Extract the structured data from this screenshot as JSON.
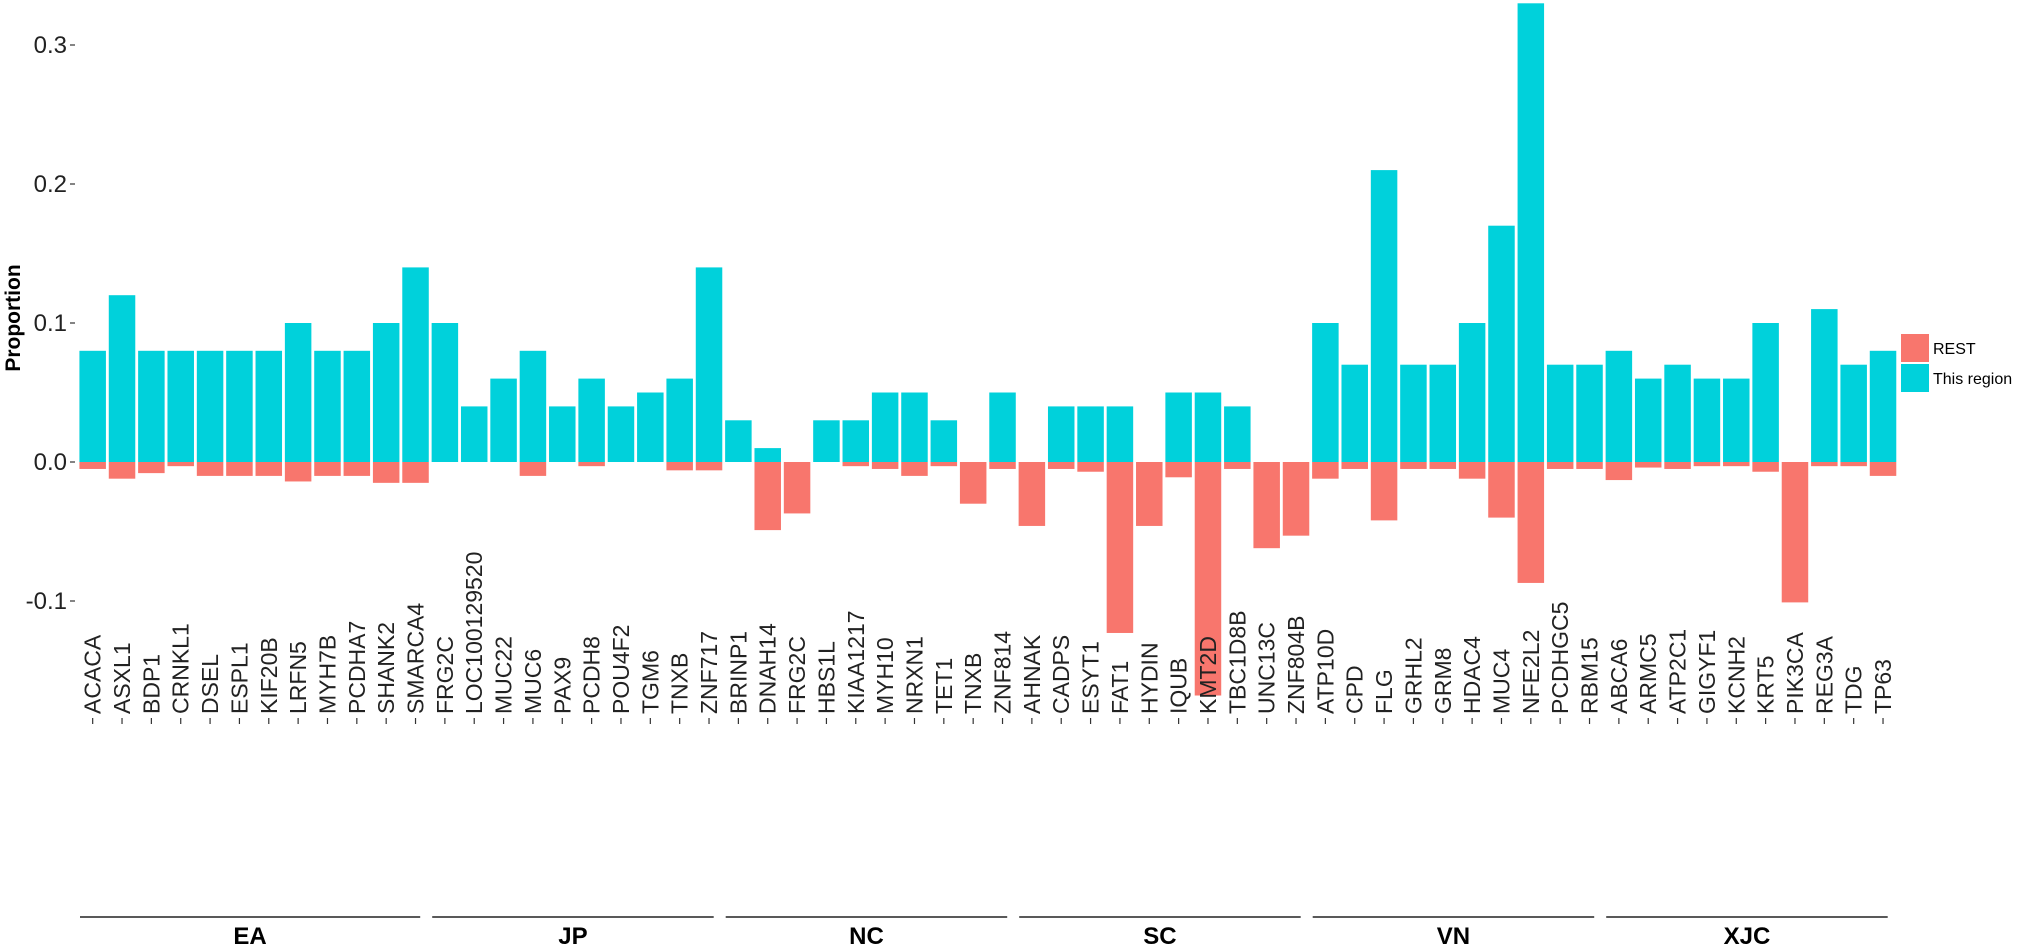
{
  "chart_data": {
    "type": "bar",
    "ylabel": "Proportion",
    "ylim": [
      -0.19,
      0.33
    ],
    "yticks": [
      {
        "value": 0.3,
        "label": "0.3"
      },
      {
        "value": 0.2,
        "label": "0.2"
      },
      {
        "value": 0.1,
        "label": "0.1"
      },
      {
        "value": 0.0,
        "label": "0.0"
      },
      {
        "value": -0.1,
        "label": "-0.1"
      }
    ],
    "legend": {
      "placement": "right",
      "entries": [
        {
          "name": "REST",
          "color": "#F8766D"
        },
        {
          "name": "This region",
          "color": "#00D1DB"
        }
      ]
    },
    "colors": {
      "this_region": "#00D1DB",
      "rest": "#F8766D"
    },
    "groups": [
      {
        "name": "EA",
        "genes": [
          {
            "gene": "ACACA",
            "this_region": 0.08,
            "rest": -0.005
          },
          {
            "gene": "ASXL1",
            "this_region": 0.12,
            "rest": -0.012
          },
          {
            "gene": "BDP1",
            "this_region": 0.08,
            "rest": -0.008
          },
          {
            "gene": "CRNKL1",
            "this_region": 0.08,
            "rest": -0.003
          },
          {
            "gene": "DSEL",
            "this_region": 0.08,
            "rest": -0.01
          },
          {
            "gene": "ESPL1",
            "this_region": 0.08,
            "rest": -0.01
          },
          {
            "gene": "KIF20B",
            "this_region": 0.08,
            "rest": -0.01
          },
          {
            "gene": "LRFN5",
            "this_region": 0.1,
            "rest": -0.014
          },
          {
            "gene": "MYH7B",
            "this_region": 0.08,
            "rest": -0.01
          },
          {
            "gene": "PCDHA7",
            "this_region": 0.08,
            "rest": -0.01
          },
          {
            "gene": "SHANK2",
            "this_region": 0.1,
            "rest": -0.015
          },
          {
            "gene": "SMARCA4",
            "this_region": 0.14,
            "rest": -0.015
          }
        ]
      },
      {
        "name": "JP",
        "genes": [
          {
            "gene": "FRG2C",
            "this_region": 0.1,
            "rest": 0.0
          },
          {
            "gene": "LOC100129520",
            "this_region": 0.04,
            "rest": 0.0
          },
          {
            "gene": "MUC22",
            "this_region": 0.06,
            "rest": 0.0
          },
          {
            "gene": "MUC6",
            "this_region": 0.08,
            "rest": -0.01
          },
          {
            "gene": "PAX9",
            "this_region": 0.04,
            "rest": 0.0
          },
          {
            "gene": "PCDH8",
            "this_region": 0.06,
            "rest": -0.003
          },
          {
            "gene": "POU4F2",
            "this_region": 0.04,
            "rest": 0.0
          },
          {
            "gene": "TGM6",
            "this_region": 0.05,
            "rest": 0.0
          },
          {
            "gene": "TNXB",
            "this_region": 0.06,
            "rest": -0.006
          },
          {
            "gene": "ZNF717",
            "this_region": 0.14,
            "rest": -0.006
          }
        ]
      },
      {
        "name": "NC",
        "genes": [
          {
            "gene": "BRINP1",
            "this_region": 0.03,
            "rest": 0.0
          },
          {
            "gene": "DNAH14",
            "this_region": 0.01,
            "rest": -0.049
          },
          {
            "gene": "FRG2C",
            "this_region": 0.0,
            "rest": -0.037
          },
          {
            "gene": "HBS1L",
            "this_region": 0.03,
            "rest": 0.0
          },
          {
            "gene": "KIAA1217",
            "this_region": 0.03,
            "rest": -0.003
          },
          {
            "gene": "MYH10",
            "this_region": 0.05,
            "rest": -0.005
          },
          {
            "gene": "NRXN1",
            "this_region": 0.05,
            "rest": -0.01
          },
          {
            "gene": "TET1",
            "this_region": 0.03,
            "rest": -0.003
          },
          {
            "gene": "TNXB",
            "this_region": 0.0,
            "rest": -0.03
          },
          {
            "gene": "ZNF814",
            "this_region": 0.05,
            "rest": -0.005
          }
        ]
      },
      {
        "name": "SC",
        "genes": [
          {
            "gene": "AHNAK",
            "this_region": 0.0,
            "rest": -0.046
          },
          {
            "gene": "CADPS",
            "this_region": 0.04,
            "rest": -0.005
          },
          {
            "gene": "ESYT1",
            "this_region": 0.04,
            "rest": -0.007
          },
          {
            "gene": "FAT1",
            "this_region": 0.04,
            "rest": -0.123
          },
          {
            "gene": "HYDIN",
            "this_region": 0.0,
            "rest": -0.046
          },
          {
            "gene": "IQUB",
            "this_region": 0.05,
            "rest": -0.011
          },
          {
            "gene": "KMT2D",
            "this_region": 0.05,
            "rest": -0.168
          },
          {
            "gene": "TBC1D8B",
            "this_region": 0.04,
            "rest": -0.005
          },
          {
            "gene": "UNC13C",
            "this_region": 0.0,
            "rest": -0.062
          },
          {
            "gene": "ZNF804B",
            "this_region": 0.0,
            "rest": -0.053
          }
        ]
      },
      {
        "name": "VN",
        "genes": [
          {
            "gene": "ATP10D",
            "this_region": 0.1,
            "rest": -0.012
          },
          {
            "gene": "CPD",
            "this_region": 0.07,
            "rest": -0.005
          },
          {
            "gene": "FLG",
            "this_region": 0.21,
            "rest": -0.042
          },
          {
            "gene": "GRHL2",
            "this_region": 0.07,
            "rest": -0.005
          },
          {
            "gene": "GRM8",
            "this_region": 0.07,
            "rest": -0.005
          },
          {
            "gene": "HDAC4",
            "this_region": 0.1,
            "rest": -0.012
          },
          {
            "gene": "MUC4",
            "this_region": 0.17,
            "rest": -0.04
          },
          {
            "gene": "NFE2L2",
            "this_region": 0.33,
            "rest": -0.087
          },
          {
            "gene": "PCDHGC5",
            "this_region": 0.07,
            "rest": -0.005
          },
          {
            "gene": "RBM15",
            "this_region": 0.07,
            "rest": -0.005
          }
        ]
      },
      {
        "name": "XJC",
        "genes": [
          {
            "gene": "ABCA6",
            "this_region": 0.08,
            "rest": -0.013
          },
          {
            "gene": "ARMC5",
            "this_region": 0.06,
            "rest": -0.004
          },
          {
            "gene": "ATP2C1",
            "this_region": 0.07,
            "rest": -0.005
          },
          {
            "gene": "GIGYF1",
            "this_region": 0.06,
            "rest": -0.003
          },
          {
            "gene": "KCNH2",
            "this_region": 0.06,
            "rest": -0.003
          },
          {
            "gene": "KRT5",
            "this_region": 0.1,
            "rest": -0.007
          },
          {
            "gene": "PIK3CA",
            "this_region": 0.0,
            "rest": -0.101
          },
          {
            "gene": "REG3A",
            "this_region": 0.11,
            "rest": -0.003
          },
          {
            "gene": "TDG",
            "this_region": 0.07,
            "rest": -0.003
          },
          {
            "gene": "TP63",
            "this_region": 0.08,
            "rest": -0.01
          }
        ]
      }
    ]
  }
}
